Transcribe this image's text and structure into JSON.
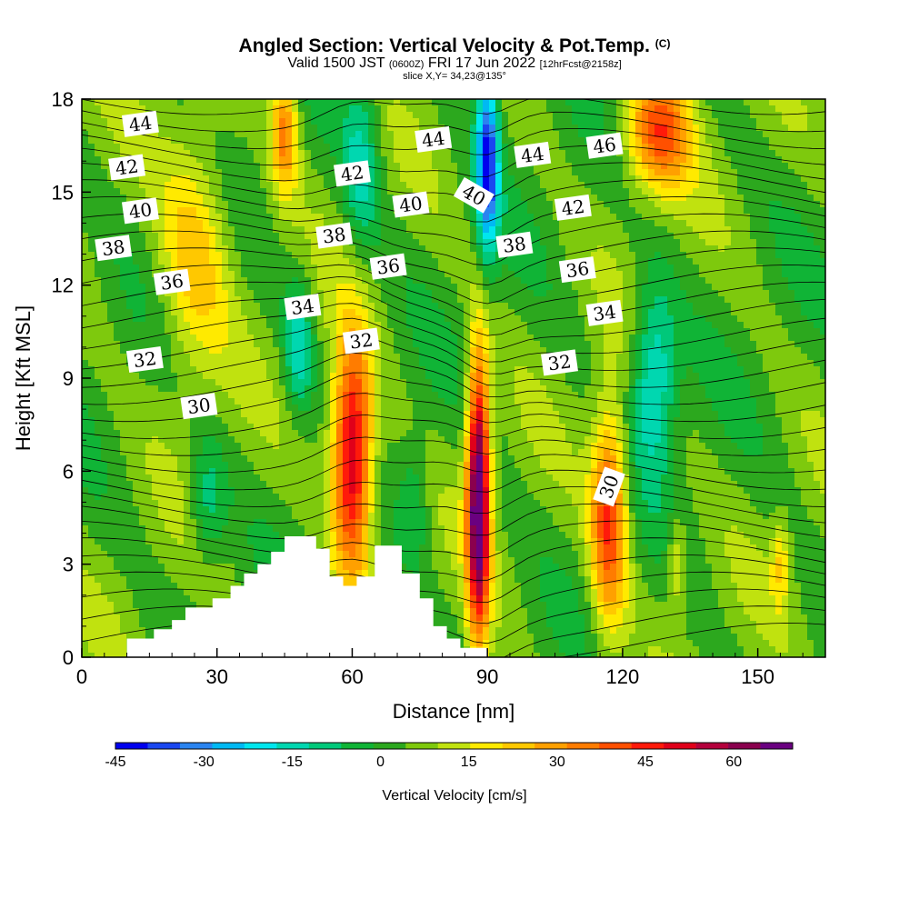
{
  "title": {
    "main": "Angled Section: Vertical Velocity & Pot.Temp.",
    "main_mark": "(C)",
    "valid_pre": "Valid 1500 JST",
    "valid_utc": "(0600Z)",
    "valid_date": "FRI 17 Jun 2022",
    "valid_fcst": "[12hrFcst@2158z]",
    "slice": "slice X,Y= 34,23@135°"
  },
  "chart_data": {
    "type": "heatmap",
    "xlabel": "Distance [nm]",
    "ylabel": "Height [Kft MSL]",
    "xlim": [
      0,
      165
    ],
    "ylim": [
      0,
      18
    ],
    "x_ticks": [
      0,
      30,
      60,
      90,
      120,
      150
    ],
    "y_ticks": [
      0,
      3,
      6,
      9,
      12,
      15,
      18
    ],
    "colorbar": {
      "label": "Vertical Velocity [cm/s]",
      "ticks": [
        -45,
        -30,
        -15,
        0,
        15,
        30,
        45,
        60
      ],
      "bins": [
        -45,
        70
      ],
      "colors": [
        "#0000ee",
        "#1a47f0",
        "#2a84f0",
        "#00b9f3",
        "#00e6ee",
        "#00d7b0",
        "#00c87a",
        "#10b436",
        "#2ca81e",
        "#7ec90d",
        "#c0e20f",
        "#ffea00",
        "#ffc800",
        "#ffa000",
        "#ff7c00",
        "#ff5000",
        "#ff1a0a",
        "#e0001a",
        "#b4003c",
        "#8a004e",
        "#6a0080"
      ]
    },
    "vertical_velocity_features": [
      {
        "x": 60,
        "z": 6.5,
        "peak": 55,
        "x_half_width": 4.5,
        "z_half_height": 3.8
      },
      {
        "x": 88,
        "z": 5.2,
        "peak": 70,
        "x_half_width": 2.5,
        "z_half_height": 4.5
      },
      {
        "x": 117,
        "z": 4.5,
        "peak": 40,
        "x_half_width": 4,
        "z_half_height": 3.5
      },
      {
        "x": 25,
        "z": 13,
        "peak": 20,
        "x_half_width": 8,
        "z_half_height": 4
      },
      {
        "x": 45,
        "z": 17,
        "peak": 30,
        "x_half_width": 3,
        "z_half_height": 2
      },
      {
        "x": 128,
        "z": 17,
        "peak": 35,
        "x_half_width": 7,
        "z_half_height": 2
      },
      {
        "x": 132,
        "z": 3,
        "peak": 15,
        "x_half_width": 2,
        "z_half_height": 1.5
      },
      {
        "x": 155,
        "z": 3,
        "peak": 15,
        "x_half_width": 2,
        "z_half_height": 1.5
      },
      {
        "x": 90,
        "z": 16,
        "peak": -45,
        "x_half_width": 2.5,
        "z_half_height": 3
      },
      {
        "x": 127,
        "z": 9,
        "peak": -25,
        "x_half_width": 5,
        "z_half_height": 3
      },
      {
        "x": 48,
        "z": 10,
        "peak": -20,
        "x_half_width": 3,
        "z_half_height": 2
      },
      {
        "x": 62,
        "z": 16,
        "peak": -18,
        "x_half_width": 4,
        "z_half_height": 3
      },
      {
        "x": 28,
        "z": 5,
        "peak": -15,
        "x_half_width": 4,
        "z_half_height": 2
      },
      {
        "x": 74,
        "z": 5,
        "peak": -10,
        "x_half_width": 3,
        "z_half_height": 2
      }
    ],
    "terrain_kft": [
      [
        0,
        0
      ],
      [
        10,
        0
      ],
      [
        10,
        0.6
      ],
      [
        16,
        0.6
      ],
      [
        16,
        0.9
      ],
      [
        20,
        0.9
      ],
      [
        20,
        1.2
      ],
      [
        23,
        1.2
      ],
      [
        23,
        1.6
      ],
      [
        29,
        1.6
      ],
      [
        29,
        1.9
      ],
      [
        33,
        1.9
      ],
      [
        33,
        2.3
      ],
      [
        36,
        2.3
      ],
      [
        36,
        2.7
      ],
      [
        39,
        2.7
      ],
      [
        39,
        3
      ],
      [
        42,
        3
      ],
      [
        42,
        3.4
      ],
      [
        45,
        3.4
      ],
      [
        45,
        3.9
      ],
      [
        52,
        3.9
      ],
      [
        52,
        3.5
      ],
      [
        55,
        3.5
      ],
      [
        55,
        2.6
      ],
      [
        58,
        2.6
      ],
      [
        58,
        2.3
      ],
      [
        61,
        2.3
      ],
      [
        61,
        2.6
      ],
      [
        65,
        2.6
      ],
      [
        65,
        3.6
      ],
      [
        71,
        3.6
      ],
      [
        71,
        2.7
      ],
      [
        75,
        2.7
      ],
      [
        75,
        1.9
      ],
      [
        78,
        1.9
      ],
      [
        78,
        1.0
      ],
      [
        81,
        1.0
      ],
      [
        81,
        0.6
      ],
      [
        84,
        0.6
      ],
      [
        84,
        0.3
      ],
      [
        90,
        0.3
      ],
      [
        90,
        0
      ]
    ],
    "potential_temperature_labels": [
      {
        "value": 44,
        "x": 13,
        "z": 17.2
      },
      {
        "value": 42,
        "x": 10,
        "z": 15.8
      },
      {
        "value": 40,
        "x": 13,
        "z": 14.4
      },
      {
        "value": 38,
        "x": 7,
        "z": 13.2
      },
      {
        "value": 36,
        "x": 20,
        "z": 12.1
      },
      {
        "value": 32,
        "x": 14,
        "z": 9.6
      },
      {
        "value": 30,
        "x": 26,
        "z": 8.1
      },
      {
        "value": 34,
        "x": 49,
        "z": 11.3
      },
      {
        "value": 32,
        "x": 62,
        "z": 10.2
      },
      {
        "value": 38,
        "x": 56,
        "z": 13.6
      },
      {
        "value": 36,
        "x": 68,
        "z": 12.6
      },
      {
        "value": 42,
        "x": 60,
        "z": 15.6
      },
      {
        "value": 40,
        "x": 73,
        "z": 14.6
      },
      {
        "value": 44,
        "x": 78,
        "z": 16.7
      },
      {
        "value": 40,
        "x": 87,
        "z": 14.9,
        "angle": 30
      },
      {
        "value": 38,
        "x": 96,
        "z": 13.3
      },
      {
        "value": 44,
        "x": 100,
        "z": 16.2
      },
      {
        "value": 42,
        "x": 109,
        "z": 14.5
      },
      {
        "value": 36,
        "x": 110,
        "z": 12.5
      },
      {
        "value": 46,
        "x": 116,
        "z": 16.5
      },
      {
        "value": 34,
        "x": 116,
        "z": 11.1
      },
      {
        "value": 32,
        "x": 106,
        "z": 9.5
      },
      {
        "value": 30,
        "x": 117,
        "z": 5.5,
        "angle": -70
      }
    ]
  }
}
